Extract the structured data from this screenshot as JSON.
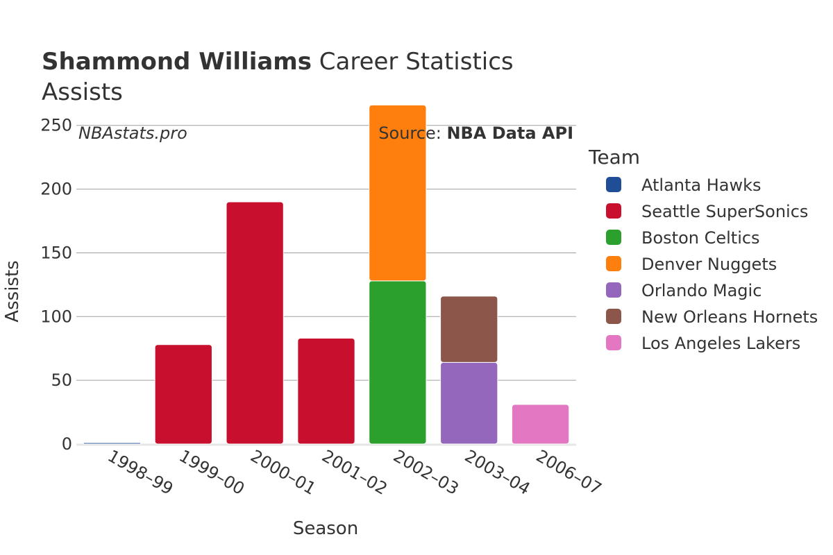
{
  "header": {
    "title_bold": "Shammond Williams",
    "title_rest": " Career Statistics",
    "subtitle": "Assists",
    "watermark": "NBAstats.pro",
    "source_prefix": "Source: ",
    "source_bold": "NBA Data API"
  },
  "chart_data": {
    "type": "bar",
    "stacked": true,
    "title": "Shammond Williams Career Statistics",
    "subtitle": "Assists",
    "xlabel": "Season",
    "ylabel": "Assists",
    "ylim": [
      0,
      270
    ],
    "yticks": [
      0,
      50,
      100,
      150,
      200,
      250
    ],
    "grid": true,
    "legend_title": "Team",
    "legend_position": "right",
    "categories": [
      "1998–99",
      "1999–00",
      "2000–01",
      "2001–02",
      "2002–03",
      "2003–04",
      "2006–07"
    ],
    "series": [
      {
        "name": "Atlanta Hawks",
        "color": "#1f4e96",
        "values": [
          1,
          0,
          0,
          0,
          0,
          0,
          0
        ]
      },
      {
        "name": "Seattle SuperSonics",
        "color": "#c8102e",
        "values": [
          0,
          78,
          190,
          83,
          0,
          0,
          0
        ]
      },
      {
        "name": "Boston Celtics",
        "color": "#2ca02c",
        "values": [
          0,
          0,
          0,
          0,
          128,
          0,
          0
        ]
      },
      {
        "name": "Denver Nuggets",
        "color": "#ff7f0e",
        "values": [
          0,
          0,
          0,
          0,
          138,
          0,
          0
        ]
      },
      {
        "name": "Orlando Magic",
        "color": "#9467bd",
        "values": [
          0,
          0,
          0,
          0,
          0,
          64,
          0
        ]
      },
      {
        "name": "New Orleans Hornets",
        "color": "#8c564b",
        "values": [
          0,
          0,
          0,
          0,
          0,
          52,
          0
        ]
      },
      {
        "name": "Los Angeles Lakers",
        "color": "#e377c2",
        "values": [
          0,
          0,
          0,
          0,
          0,
          0,
          31
        ]
      }
    ]
  }
}
